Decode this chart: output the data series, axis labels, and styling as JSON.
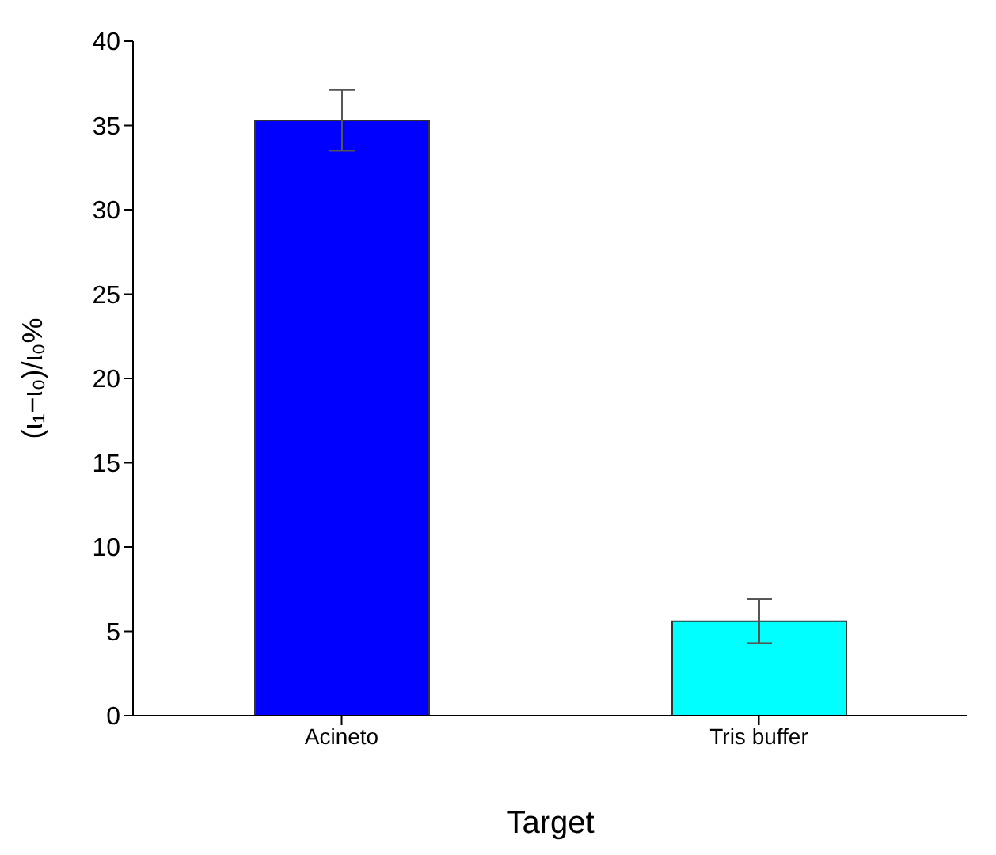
{
  "chart_data": {
    "type": "bar",
    "xlabel": "Target",
    "ylabel": "(ι₁−ι₀)/ι₀%",
    "categories": [
      "Acineto",
      "Tris buffer"
    ],
    "values": [
      35.3,
      5.6
    ],
    "colors": [
      "#0000ff",
      "#00ffff"
    ],
    "errors": [
      1.8,
      1.3
    ],
    "ylim": [
      0,
      40
    ],
    "yticks": [
      0,
      5,
      10,
      15,
      20,
      25,
      30,
      35,
      40
    ],
    "grid": false
  }
}
